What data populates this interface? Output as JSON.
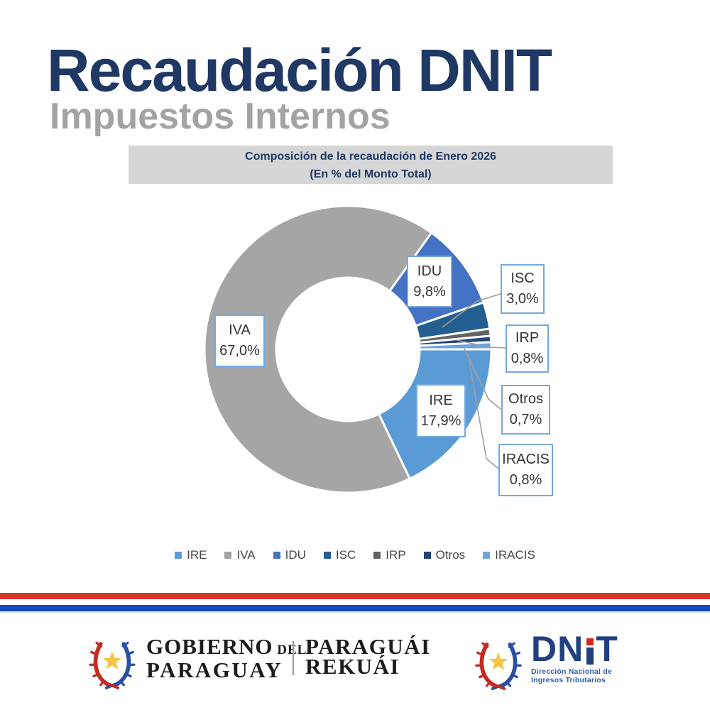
{
  "header": {
    "title": "Recaudación DNIT",
    "subtitle": "Impuestos Internos",
    "title_color": "#1F3864",
    "subtitle_color": "#A3A3A3"
  },
  "banner": {
    "line1": "Composición de la recaudación de Enero 2026",
    "line2": "(En % del Monto Total)",
    "background": "#D6D6D6",
    "text_color": "#1F3864"
  },
  "chart_data": {
    "type": "pie",
    "donut": true,
    "title": "Composición de la recaudación de Enero 2026",
    "subtitle": "(En % del Monto Total)",
    "start_angle_deg": 90,
    "inner_radius_ratio": 0.5,
    "slices": [
      {
        "label": "IRE",
        "value": 17.9,
        "display": "17,9%",
        "color": "#5B9BD5"
      },
      {
        "label": "IVA",
        "value": 67.0,
        "display": "67,0%",
        "color": "#A5A5A5"
      },
      {
        "label": "IDU",
        "value": 9.8,
        "display": "9,8%",
        "color": "#4472C4"
      },
      {
        "label": "ISC",
        "value": 3.0,
        "display": "3,0%",
        "color": "#255E91"
      },
      {
        "label": "IRP",
        "value": 0.8,
        "display": "0,8%",
        "color": "#636363"
      },
      {
        "label": "Otros",
        "value": 0.7,
        "display": "0,7%",
        "color": "#264478"
      },
      {
        "label": "IRACIS",
        "value": 0.8,
        "display": "0,8%",
        "color": "#6EA4DB"
      }
    ],
    "legend_order": [
      "IRE",
      "IVA",
      "IDU",
      "ISC",
      "IRP",
      "Otros",
      "IRACIS"
    ],
    "legend_position": "bottom"
  },
  "stripes": {
    "red": "#D7342B",
    "blue": "#1648BE"
  },
  "footer": {
    "gobierno_logo": {
      "word1": "GOBIERNO",
      "word1_small": "DEL",
      "word2": "PARAGUAY",
      "word3": "PARAGUÁI",
      "word4": "REKUÁI"
    },
    "dnit_logo": {
      "acronym": "DNIT",
      "acronym_left": "DN",
      "acronym_right": "T",
      "sub_line1": "Dirección Nacional de",
      "sub_line2": "Ingresos Tributarios"
    }
  }
}
